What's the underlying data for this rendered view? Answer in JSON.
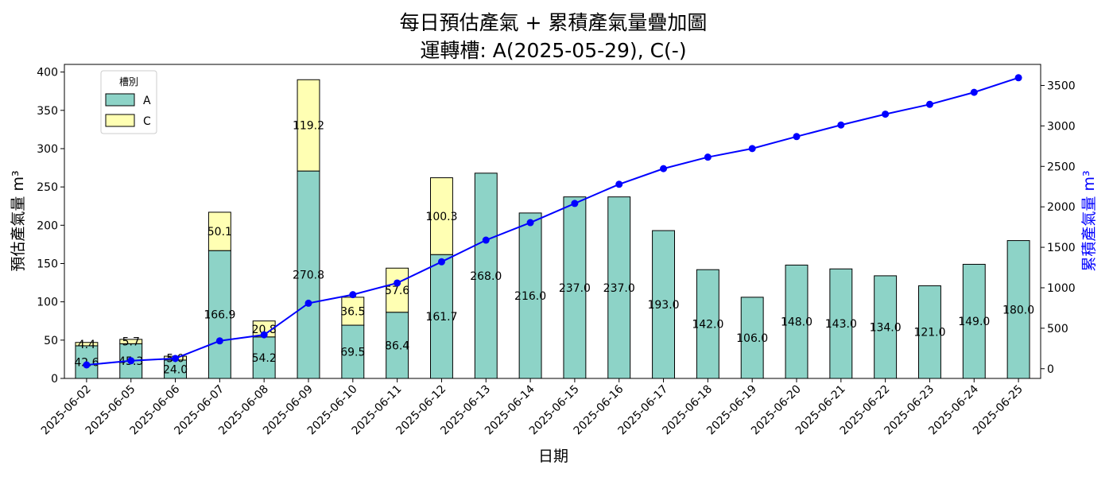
{
  "chart_data": {
    "type": "bar",
    "title": "每日預估產氣 + 累積產氣量疊加圖",
    "subtitle": "運轉槽: A(2025-05-29), C(-)",
    "xlabel": "日期",
    "ylabel": "預估產氣量 m³",
    "ylabel_right": "累積產氣量 m³",
    "ylim": [
      0,
      410
    ],
    "ylim_right": [
      -120,
      3760
    ],
    "yticks": [
      0,
      50,
      100,
      150,
      200,
      250,
      300,
      350,
      400
    ],
    "yticks_right": [
      0,
      500,
      1000,
      1500,
      2000,
      2500,
      3000,
      3500
    ],
    "legend": {
      "title": "槽別",
      "placement": "top-left"
    },
    "categories": [
      "2025-06-02",
      "2025-06-05",
      "2025-06-06",
      "2025-06-07",
      "2025-06-08",
      "2025-06-09",
      "2025-06-10",
      "2025-06-11",
      "2025-06-12",
      "2025-06-13",
      "2025-06-14",
      "2025-06-15",
      "2025-06-16",
      "2025-06-17",
      "2025-06-18",
      "2025-06-19",
      "2025-06-20",
      "2025-06-21",
      "2025-06-22",
      "2025-06-23",
      "2025-06-24",
      "2025-06-25"
    ],
    "series": [
      {
        "name": "A",
        "color": "#8dd3c7",
        "values": [
          42.6,
          45.3,
          24.0,
          166.9,
          54.2,
          270.8,
          69.5,
          86.4,
          161.7,
          268.0,
          216.0,
          237.0,
          237.0,
          193.0,
          142.0,
          106.0,
          148.0,
          143.0,
          134.0,
          121.0,
          149.0,
          180.0
        ]
      },
      {
        "name": "C",
        "color": "#ffffb3",
        "values": [
          4.4,
          5.7,
          5.0,
          50.1,
          20.8,
          119.2,
          36.5,
          57.6,
          100.3,
          0,
          0,
          0,
          0,
          0,
          0,
          0,
          0,
          0,
          0,
          0,
          0,
          0
        ]
      }
    ],
    "cumulative": {
      "color": "#0000ff",
      "values": [
        47.0,
        98.0,
        127.0,
        344.0,
        419.0,
        809.0,
        915.0,
        1059.0,
        1321.0,
        1589.0,
        1805.0,
        2042.0,
        2279.0,
        2472.0,
        2614.0,
        2720.0,
        2868.0,
        3011.0,
        3145.0,
        3266.0,
        3415.0,
        3595.0
      ]
    }
  }
}
